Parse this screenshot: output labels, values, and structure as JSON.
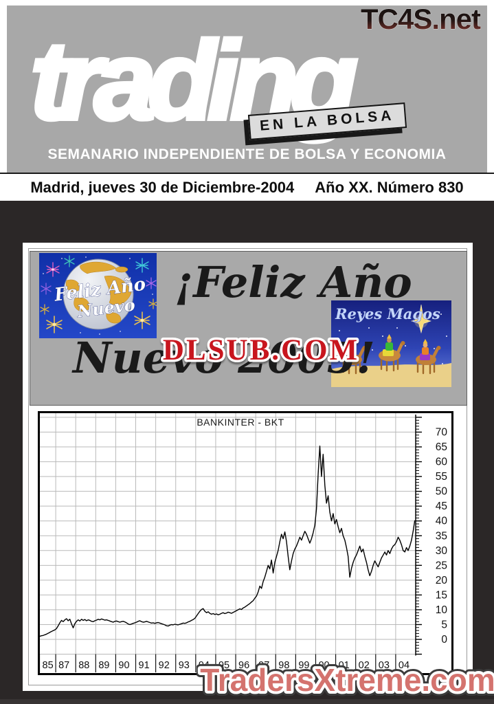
{
  "masthead": {
    "site": "TC4S.net",
    "logo": "trading",
    "tagline": "EN LA BOLSA",
    "subtitle": "SEMANARIO INDEPENDIENTE DE BOLSA Y ECONOMIA",
    "dateline_left": "Madrid, jueves 30 de Diciembre-2004",
    "dateline_right": "Año XX. Número 830"
  },
  "greeting": {
    "line1": "¡Feliz Año",
    "line2": "Nuevo 2005!",
    "left_image_text1": "Feliz Año",
    "left_image_text2": "Nuevo",
    "right_image_title": "Reyes Magos",
    "watermark": "DLSUB.COM"
  },
  "footer_watermark": "TradersXtreme.com",
  "colors": {
    "masthead_gray": "#a8a8a8",
    "page_dark": "#2b2727",
    "greeting_gray": "#a9a9a9",
    "dlsub_red": "#c8161e",
    "tradersxtreme_salmon": "#d4736e",
    "grid_gray": "#b9b9b9"
  },
  "chart_data": {
    "type": "line",
    "title": "BANKINTER - BKT",
    "x_tick_labels": [
      "85",
      "87",
      "88",
      "89",
      "90",
      "91",
      "92",
      "93",
      "94",
      "95",
      "96",
      "97",
      "98",
      "99",
      "00",
      "01",
      "02",
      "03",
      "04"
    ],
    "y_tick_labels": [
      70,
      65,
      60,
      55,
      50,
      45,
      40,
      35,
      30,
      25,
      20,
      15,
      10,
      5,
      0
    ],
    "ylim": [
      -5,
      75
    ],
    "grid": true,
    "x_start_year": 1985,
    "points_per_year": 12,
    "first_interval_note": "first x interval (label 85) spans 1985-1986; label 86 omitted",
    "values": [
      0.8,
      0.85,
      0.9,
      1.0,
      1.05,
      1.1,
      1.2,
      1.25,
      1.3,
      1.4,
      1.5,
      1.6,
      1.7,
      1.85,
      2.0,
      2.15,
      2.3,
      2.45,
      2.6,
      2.75,
      2.9,
      3.0,
      3.15,
      3.3,
      3.7,
      4.6,
      5.6,
      6.4,
      6.0,
      6.6,
      7.0,
      6.3,
      6.8,
      5.2,
      3.9,
      5.3,
      6.1,
      6.6,
      6.2,
      6.8,
      6.4,
      6.7,
      6.3,
      6.6,
      6.4,
      6.1,
      6.0,
      6.3,
      6.5,
      6.8,
      6.6,
      6.9,
      6.7,
      6.5,
      6.6,
      6.4,
      6.2,
      6.0,
      5.8,
      6.1,
      6.2,
      6.0,
      5.8,
      6.0,
      6.1,
      5.9,
      5.6,
      5.2,
      5.0,
      5.2,
      5.4,
      5.6,
      5.8,
      6.1,
      6.3,
      6.0,
      5.8,
      5.9,
      6.1,
      5.9,
      5.7,
      5.5,
      5.6,
      5.4,
      5.6,
      5.7,
      5.5,
      5.3,
      5.1,
      4.9,
      4.6,
      4.5,
      4.8,
      5.0,
      4.9,
      5.1,
      5.0,
      4.9,
      5.1,
      5.3,
      5.5,
      5.4,
      5.6,
      5.9,
      6.1,
      6.4,
      6.7,
      7.1,
      7.9,
      8.7,
      9.5,
      10.1,
      10.4,
      9.5,
      9.0,
      9.3,
      8.8,
      8.5,
      8.7,
      8.4,
      8.6,
      8.3,
      8.5,
      8.8,
      9.0,
      8.7,
      8.9,
      9.2,
      9.0,
      8.8,
      9.1,
      9.4,
      9.7,
      10.0,
      10.3,
      10.1,
      10.6,
      10.9,
      11.3,
      11.7,
      12.1,
      12.6,
      13.1,
      13.9,
      14.6,
      16.0,
      18.0,
      17.2,
      19.5,
      21.0,
      23.0,
      25.0,
      23.8,
      26.8,
      22.4,
      26.0,
      28.0,
      30.0,
      33.0,
      35.5,
      34.0,
      36.3,
      33.0,
      28.0,
      23.5,
      26.5,
      29.0,
      30.5,
      31.5,
      33.0,
      34.5,
      33.5,
      35.0,
      36.5,
      35.5,
      34.0,
      32.5,
      34.0,
      36.0,
      38.5,
      44.0,
      56.0,
      65.3,
      55.0,
      62.5,
      52.0,
      46.0,
      48.5,
      43.0,
      40.0,
      42.5,
      39.0,
      40.5,
      38.0,
      36.0,
      37.5,
      35.0,
      33.5,
      31.0,
      28.0,
      21.0,
      24.0,
      26.0,
      27.5,
      28.5,
      30.0,
      31.5,
      29.5,
      30.5,
      28.0,
      26.0,
      23.5,
      21.5,
      23.0,
      25.0,
      26.5,
      25.5,
      24.5,
      26.0,
      27.5,
      28.5,
      29.5,
      28.5,
      30.0,
      29.0,
      30.5,
      31.5,
      32.0,
      33.0,
      34.5,
      33.5,
      32.0,
      30.0,
      29.5,
      31.0,
      30.0,
      31.5,
      33.5,
      36.5,
      40.2
    ]
  }
}
